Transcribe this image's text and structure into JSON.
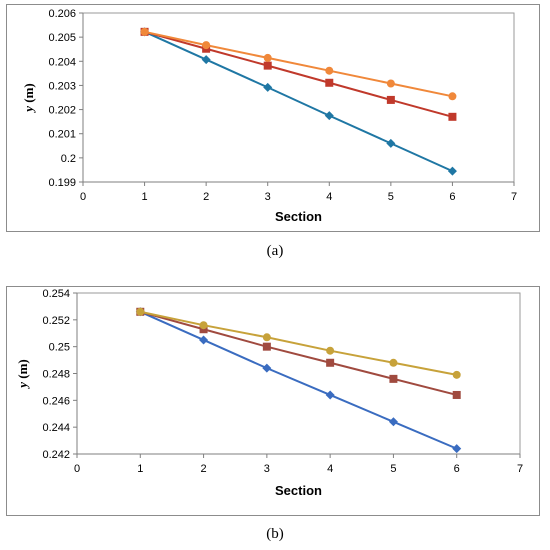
{
  "chart_data": [
    {
      "type": "line",
      "caption": "(a)",
      "xlabel": "Section",
      "ylabel_var": "y",
      "ylabel_unit": " (m)",
      "xlim": [
        0,
        7
      ],
      "ylim": [
        0.199,
        0.206
      ],
      "xticks": [
        "0",
        "1",
        "2",
        "3",
        "4",
        "5",
        "6",
        "7"
      ],
      "yticks": [
        "0.199",
        "0.2",
        "0.201",
        "0.202",
        "0.203",
        "0.204",
        "0.205",
        "0.206"
      ],
      "x": [
        1,
        2,
        3,
        4,
        5,
        6
      ],
      "grid": false,
      "series": [
        {
          "marker": "diamond",
          "color": "#1f77a4",
          "values": [
            0.20522,
            0.20407,
            0.20292,
            0.20175,
            0.2006,
            0.19945
          ]
        },
        {
          "marker": "square",
          "color": "#c0392b",
          "values": [
            0.20522,
            0.20452,
            0.20382,
            0.20311,
            0.2024,
            0.2017
          ]
        },
        {
          "marker": "circle",
          "color": "#f0883a",
          "values": [
            0.20522,
            0.20467,
            0.20414,
            0.20361,
            0.20308,
            0.20255
          ]
        }
      ]
    },
    {
      "type": "line",
      "caption": "(b)",
      "xlabel": "Section",
      "ylabel_var": "y",
      "ylabel_unit": " (m)",
      "xlim": [
        0,
        7
      ],
      "ylim": [
        0.242,
        0.254
      ],
      "xticks": [
        "0",
        "1",
        "2",
        "3",
        "4",
        "5",
        "6",
        "7"
      ],
      "yticks": [
        "0.242",
        "0.244",
        "0.246",
        "0.248",
        "0.25",
        "0.252",
        "0.254"
      ],
      "x": [
        1,
        2,
        3,
        4,
        5,
        6
      ],
      "grid": false,
      "series": [
        {
          "marker": "diamond",
          "color": "#3a6cc0",
          "values": [
            0.2526,
            0.2505,
            0.2484,
            0.2464,
            0.2444,
            0.2424
          ]
        },
        {
          "marker": "square",
          "color": "#a04a3f",
          "values": [
            0.2526,
            0.2513,
            0.25,
            0.2488,
            0.2476,
            0.2464
          ]
        },
        {
          "marker": "circle",
          "color": "#c7a23a",
          "values": [
            0.2526,
            0.2516,
            0.2507,
            0.2497,
            0.2488,
            0.2479
          ]
        }
      ]
    }
  ]
}
